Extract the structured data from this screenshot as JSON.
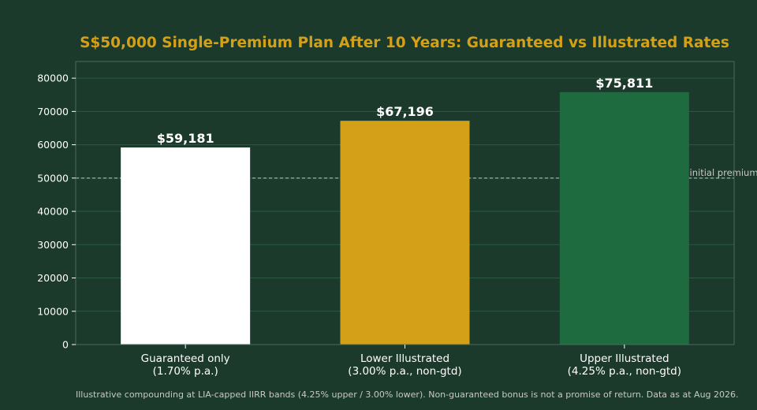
{
  "chart_data": {
    "type": "bar",
    "title": "S$50,000 Single-Premium Plan After 10 Years: Guaranteed vs Illustrated Rates",
    "xlabel": "",
    "ylabel": "",
    "categories": [
      [
        "Guaranteed only",
        "(1.70% p.a.)"
      ],
      [
        "Lower Illustrated",
        "(3.00% p.a., non-gtd)"
      ],
      [
        "Upper Illustrated",
        "(4.25% p.a., non-gtd)"
      ]
    ],
    "values": [
      59181,
      67196,
      75811
    ],
    "value_labels": [
      "$59,181",
      "$67,196",
      "$75,811"
    ],
    "bar_colors": [
      "#ffffff",
      "#d4a017",
      "#1e6b40"
    ],
    "ylim": [
      0,
      85000
    ],
    "yticks": [
      0,
      10000,
      20000,
      30000,
      40000,
      50000,
      60000,
      70000,
      80000
    ],
    "grid": true,
    "reference_line": {
      "value": 50000,
      "label": "S$50,000 initial premium"
    },
    "footnote": "Illustrative compounding at LIA-capped IIRR bands (4.25% upper / 3.00% lower). Non-guaranteed bonus is not a promise of return. Data as at Aug 2026.",
    "colors": {
      "background": "#1b3a2c",
      "title": "#d4a017",
      "text": "#ffffff",
      "grid": "#2b5a40",
      "axis": "#4a6b58",
      "reference": "#c8c8c8"
    }
  }
}
